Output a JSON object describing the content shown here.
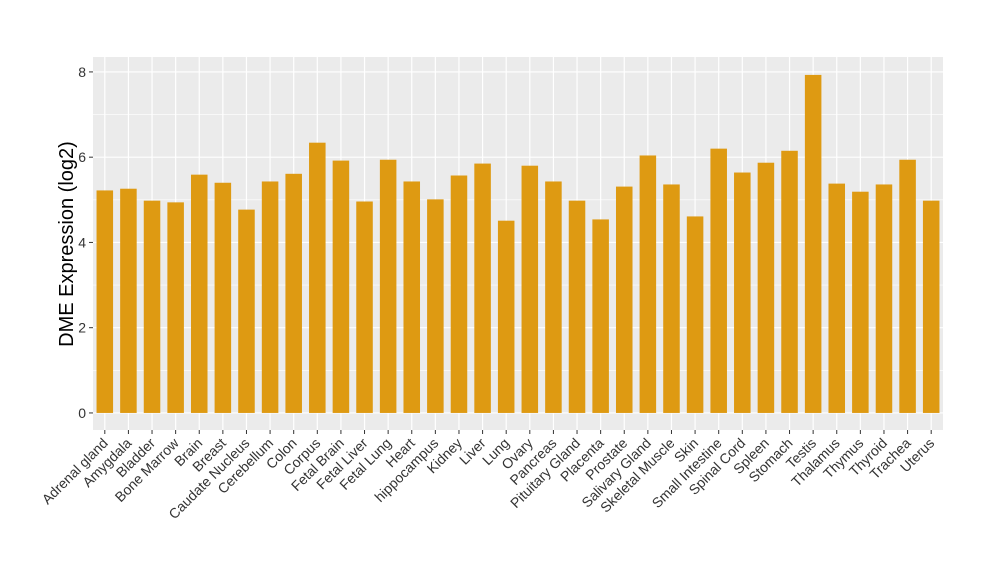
{
  "chart_data": {
    "type": "bar",
    "title": "",
    "xlabel": "",
    "ylabel": "DME Expression (log2)",
    "ylim": [
      -0.4,
      8.35
    ],
    "yticks": [
      0,
      2,
      4,
      6,
      8
    ],
    "grid": true,
    "bar_color": "#DE9A12",
    "panel_color": "#EBEBEB",
    "categories": [
      "Adrenal gland",
      "Amygdala",
      "Bladder",
      "Bone Marrow",
      "Brain",
      "Breast",
      "Caudate Nucleus",
      "Cerebellum",
      "Colon",
      "Corpus",
      "Fetal Brain",
      "Fetal Liver",
      "Fetal Lung",
      "Heart",
      "hippocampus",
      "Kidney",
      "Liver",
      "Lung",
      "Ovary",
      "Pancreas",
      "Pituitary Gland",
      "Placenta",
      "Prostate",
      "Salivary Gland",
      "Skeletal Muscle",
      "Skin",
      "Small Intestine",
      "Spinal Cord",
      "Spleen",
      "Stomach",
      "Testis",
      "Thalamus",
      "Thymus",
      "Thyroid",
      "Trachea",
      "Uterus"
    ],
    "values": [
      5.22,
      5.26,
      4.98,
      4.94,
      5.59,
      5.4,
      4.77,
      5.43,
      5.61,
      6.34,
      5.92,
      4.96,
      5.94,
      5.43,
      5.01,
      5.57,
      5.85,
      4.51,
      5.8,
      5.43,
      4.98,
      4.54,
      5.31,
      6.04,
      5.36,
      4.61,
      6.2,
      5.64,
      5.87,
      6.15,
      7.93,
      5.38,
      5.19,
      5.36,
      5.94,
      4.98
    ]
  }
}
